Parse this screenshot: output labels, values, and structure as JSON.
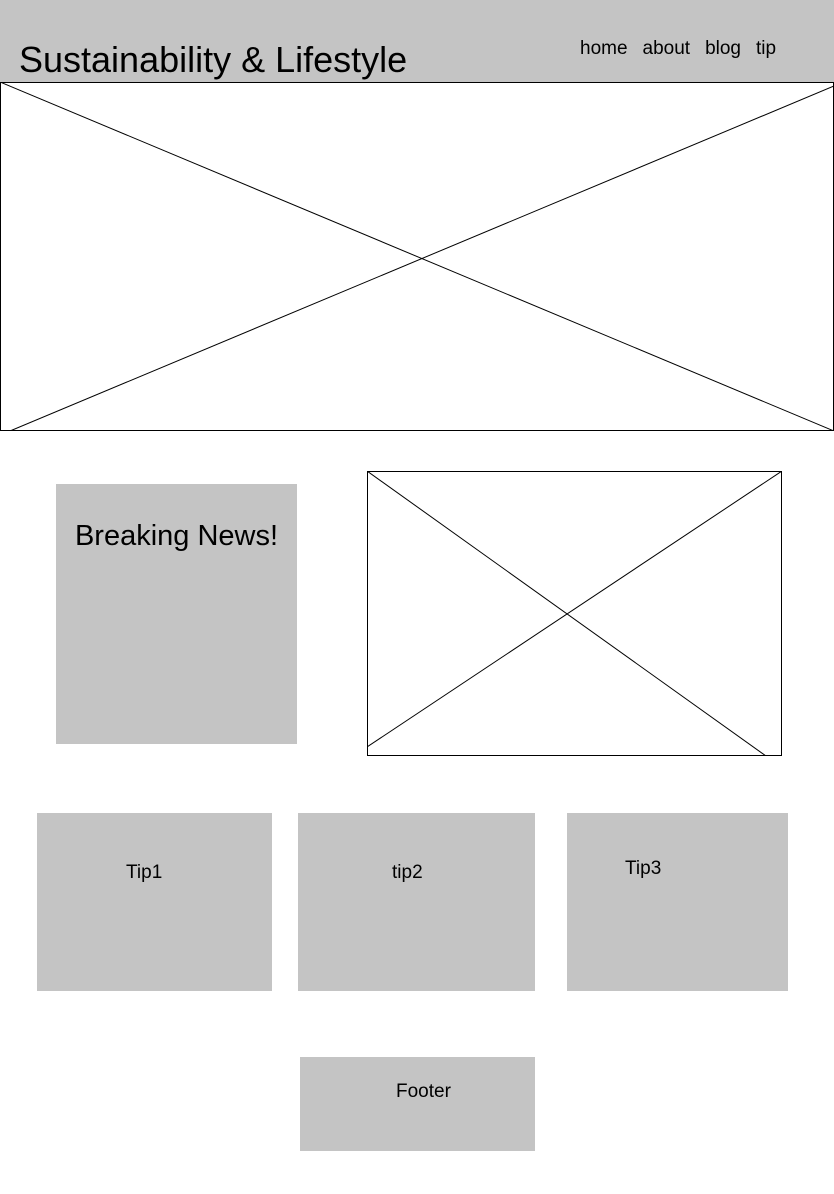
{
  "header": {
    "title": "Sustainability & Lifestyle",
    "nav": [
      {
        "label": "home"
      },
      {
        "label": "about"
      },
      {
        "label": "blog"
      },
      {
        "label": "tip"
      }
    ]
  },
  "news": {
    "title": "Breaking News!"
  },
  "tips": [
    {
      "label": "Tip1"
    },
    {
      "label": "tip2"
    },
    {
      "label": "Tip3"
    }
  ],
  "footer": {
    "label": "Footer"
  },
  "colors": {
    "block_fill": "#c4c4c4",
    "background": "#ffffff",
    "line": "#000000"
  },
  "icons": {
    "image_placeholder": "image-placeholder-icon"
  }
}
